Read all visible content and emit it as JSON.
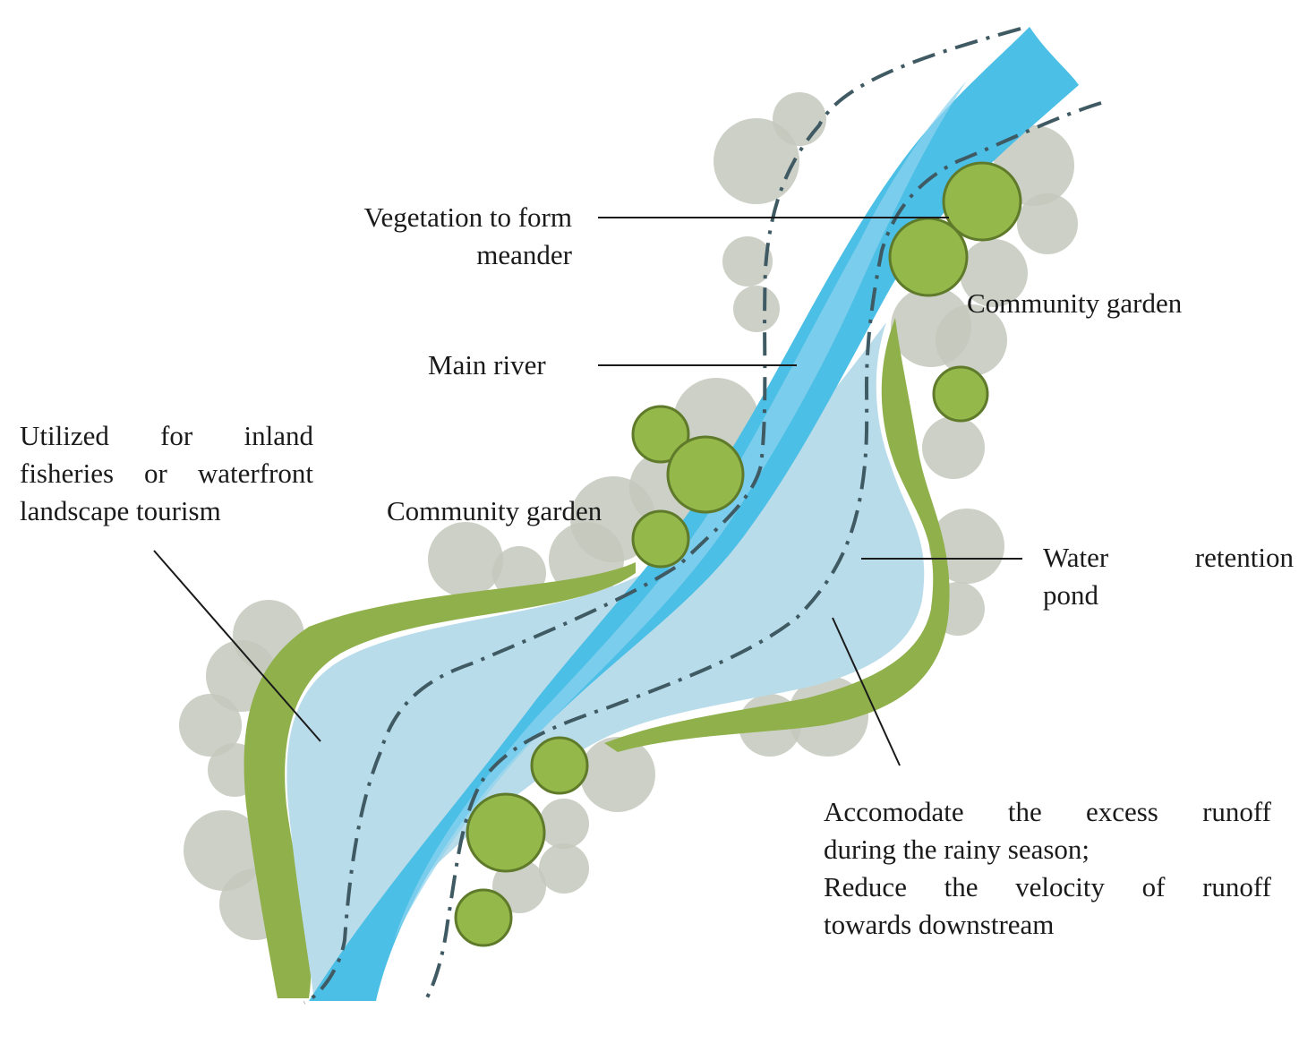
{
  "labels": {
    "vegetation": [
      "Vegetation to form",
      "meander"
    ],
    "main_river": "Main river",
    "community_garden_right": "Community garden",
    "community_garden_left": "Community garden",
    "utilized": [
      "Utilized for inland",
      "fisheries or waterfront",
      "landscape tourism"
    ],
    "water_retention": [
      "Water retention",
      "pond"
    ],
    "accomodate": [
      "Accomodate the excess runoff",
      "during the rainy season;",
      "Reduce the velocity of runoff",
      "towards downstream"
    ]
  },
  "colors": {
    "river": "#4bbfe6",
    "pond": "#b9dcea",
    "bank": "#8fb04b",
    "tree_green": "#94b84a",
    "tree_gray": "#c4c8bc",
    "boundary": "#3f5a63",
    "leader": "#1a1a1a"
  }
}
